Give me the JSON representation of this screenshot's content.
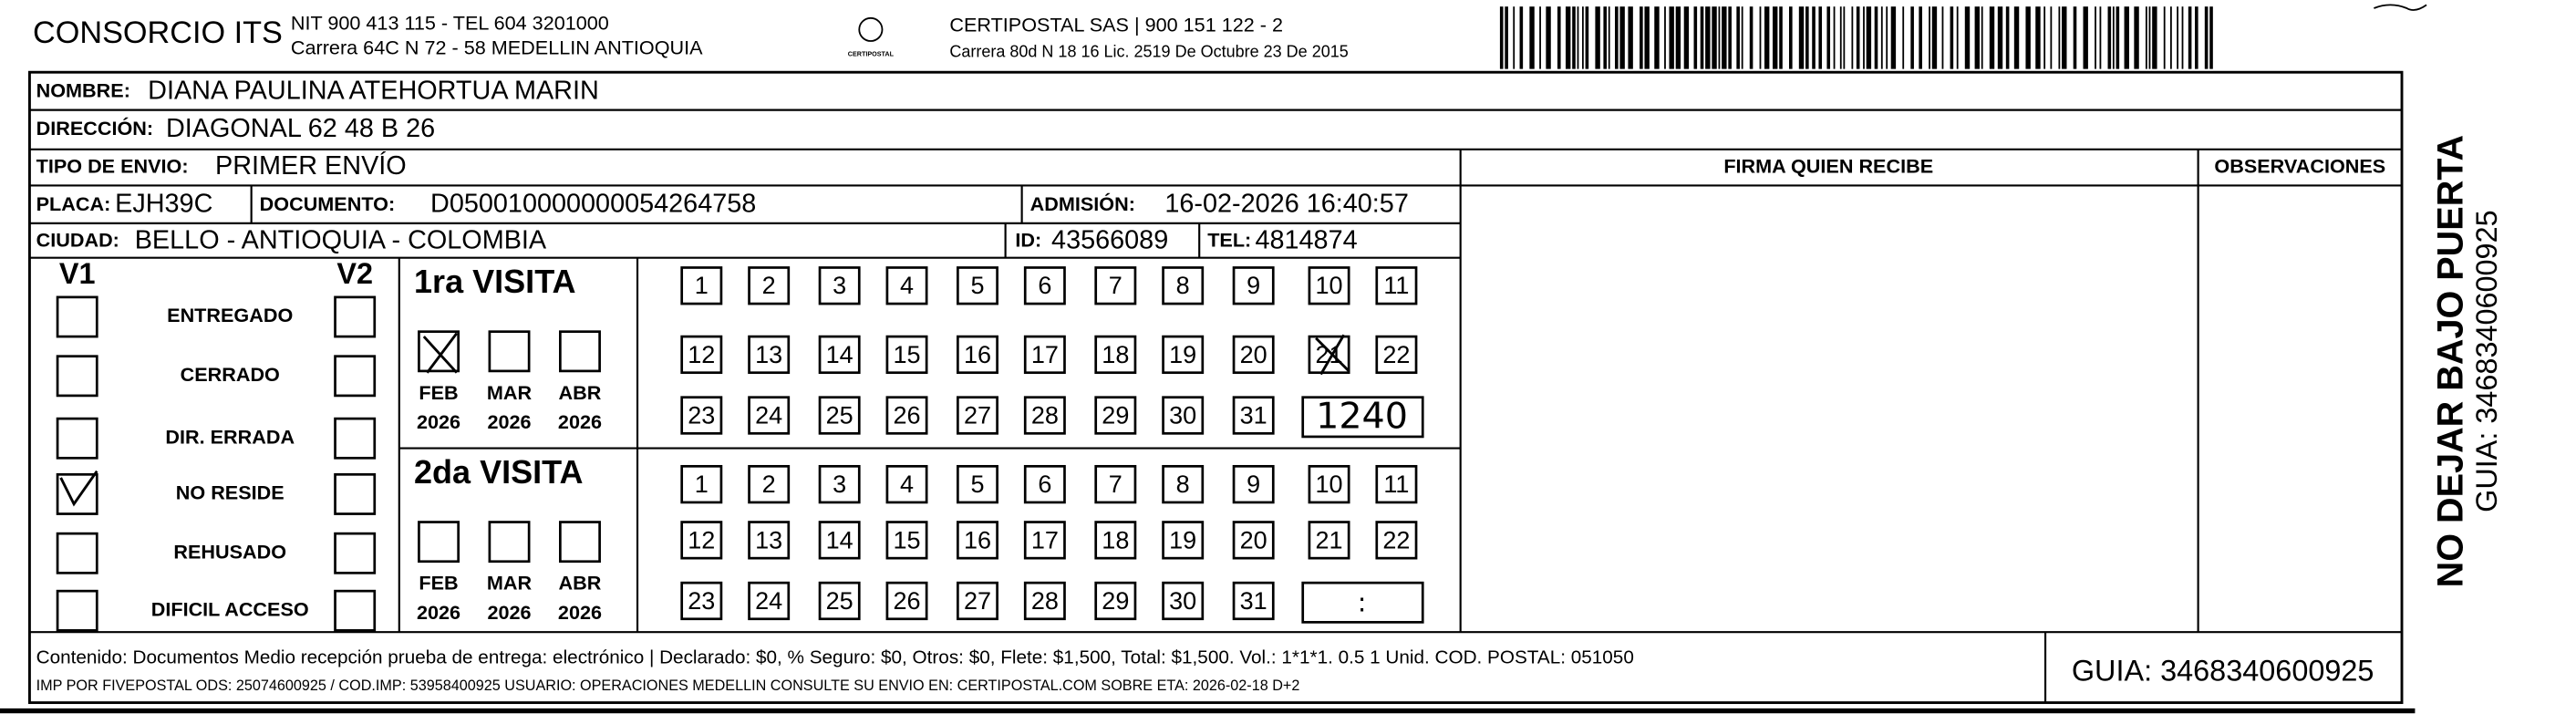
{
  "header": {
    "company": "CONSORCIO ITS",
    "nit": "NIT 900 413 115 - TEL 604 3201000",
    "address": "Carrera 64C N 72 - 58 MEDELLIN ANTIOQUIA",
    "logo": "CERTIPOSTAL",
    "carrier": "CERTIPOSTAL SAS | 900 151 122 - 2",
    "carrier_address": "Carrera 80d N 18 16  Lic. 2519 De Octubre 23 De 2015"
  },
  "fields": {
    "nombre": {
      "label": "NOMBRE:",
      "value": "DIANA PAULINA ATEHORTUA MARIN"
    },
    "direccion": {
      "label": "DIRECCIÓN:",
      "value": "DIAGONAL 62 48 B 26"
    },
    "tipo": {
      "label": "TIPO DE ENVIO:",
      "value": "PRIMER ENVÍO"
    },
    "placa": {
      "label": "PLACA:",
      "value": "EJH39C"
    },
    "documento": {
      "label": "DOCUMENTO:",
      "value": "D050010000000054264758"
    },
    "admision": {
      "label": "ADMISIÓN:",
      "value": "16-02-2026 16:40:57"
    },
    "ciudad": {
      "label": "CIUDAD:",
      "value": "BELLO - ANTIOQUIA - COLOMBIA"
    },
    "id": {
      "label": "ID:",
      "value": "43566089"
    },
    "tel": {
      "label": "TEL:",
      "value": "4814874"
    }
  },
  "columns": {
    "firma": "FIRMA QUIEN RECIBE",
    "observaciones": "OBSERVACIONES"
  },
  "status": {
    "v1": "V1",
    "v2": "V2",
    "options": [
      "ENTREGADO",
      "CERRADO",
      "DIR. ERRADA",
      "NO RESIDE",
      "REHUSADO",
      "DIFICIL ACCESO"
    ]
  },
  "visits": [
    {
      "title": "1ra VISITA",
      "months": [
        {
          "month": "FEB",
          "year": "2026"
        },
        {
          "month": "MAR",
          "year": "2026"
        },
        {
          "month": "ABR",
          "year": "2026"
        }
      ],
      "days": [
        1,
        2,
        3,
        4,
        5,
        6,
        7,
        8,
        9,
        10,
        11,
        12,
        13,
        14,
        15,
        16,
        17,
        18,
        19,
        20,
        21,
        22,
        23,
        24,
        25,
        26,
        27,
        28,
        29,
        30,
        31
      ],
      "time": "1240"
    },
    {
      "title": "2da VISITA",
      "months": [
        {
          "month": "FEB",
          "year": "2026"
        },
        {
          "month": "MAR",
          "year": "2026"
        },
        {
          "month": "ABR",
          "year": "2026"
        }
      ],
      "days": [
        1,
        2,
        3,
        4,
        5,
        6,
        7,
        8,
        9,
        10,
        11,
        12,
        13,
        14,
        15,
        16,
        17,
        18,
        19,
        20,
        21,
        22,
        23,
        24,
        25,
        26,
        27,
        28,
        29,
        30,
        31
      ],
      "time": ":"
    }
  ],
  "footer": {
    "contents": "Contenido: Documentos Medio recepción prueba de entrega: electrónico | Declarado: $0, % Seguro: $0, Otros: $0, Flete: $1,500, Total: $1,500. Vol.: 1*1*1. 0.5  1 Unid. COD. POSTAL: 051050",
    "print_info": "IMP POR FIVEPOSTAL ODS: 25074600925 / COD.IMP: 53958400925 USUARIO: OPERACIONES MEDELLIN CONSULTE SU ENVIO EN: CERTIPOSTAL.COM SOBRE ETA: 2026-02-18 D+2",
    "guia": "GUIA: 3468340600925"
  },
  "side": {
    "warning": "NO DEJAR BAJO PUERTA",
    "guia": "GUIA: 3468340600925"
  }
}
